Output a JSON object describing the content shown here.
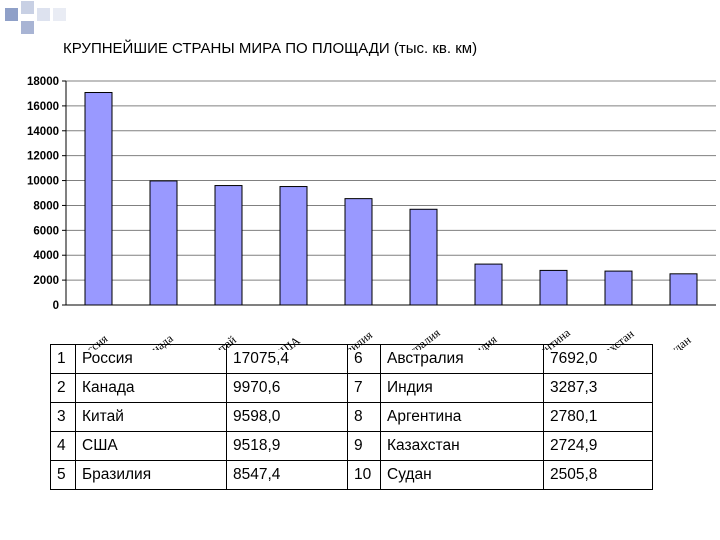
{
  "chart_data": {
    "type": "bar",
    "title": "КРУПНЕЙШИЕ СТРАНЫ МИРА ПО ПЛОЩАДИ (тыс. кв. км)",
    "categories": [
      "Россия",
      "Канада",
      "Китай",
      "США",
      "Бразилия",
      "Австралия",
      "Индия",
      "Аргентина",
      "Казахстан",
      "Судан"
    ],
    "series": [
      {
        "values": [
          17075.4,
          9970.6,
          9598.0,
          9518.9,
          8547.4,
          7692.0,
          3287.3,
          2780.1,
          2724.9,
          2505.8
        ]
      }
    ],
    "ylim": [
      0,
      18000
    ],
    "yticks": [
      "0",
      "2000",
      "4000",
      "6000",
      "8000",
      "10000",
      "12000",
      "14000",
      "16000",
      "18000"
    ],
    "grid": true,
    "bar_color": "#9999ff"
  },
  "table": {
    "rows": [
      {
        "n1": "1",
        "c1": "Россия",
        "v1": "17075,4",
        "n2": "6",
        "c2": "Австралия",
        "v2": "7692,0"
      },
      {
        "n1": "2",
        "c1": "Канада",
        "v1": "9970,6",
        "n2": "7",
        "c2": "Индия",
        "v2": "3287,3"
      },
      {
        "n1": "3",
        "c1": "Китай",
        "v1": "9598,0",
        "n2": "8",
        "c2": "Аргентина",
        "v2": "2780,1"
      },
      {
        "n1": "4",
        "c1": "США",
        "v1": "9518,9",
        "n2": "9",
        "c2": "Казахстан",
        "v2": "2724,9"
      },
      {
        "n1": "5",
        "c1": "Бразилия",
        "v1": "8547,4",
        "n2": "10",
        "c2": "Судан",
        "v2": "2505,8"
      }
    ]
  }
}
